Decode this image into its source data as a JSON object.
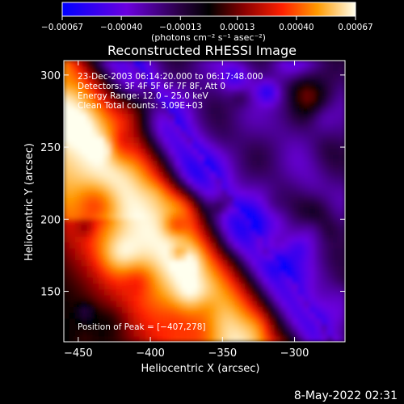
{
  "chart_data": {
    "type": "heatmap",
    "title": "Reconstructed RHESSI Image",
    "xlabel": "Heliocentric X (arcsec)",
    "ylabel": "Heliocentric Y (arcsec)",
    "xlim": [
      -460,
      -265
    ],
    "ylim": [
      115,
      310
    ],
    "x_ticks": [
      -450,
      -400,
      -350,
      -300
    ],
    "x_tick_labels": [
      "−450",
      "−400",
      "−350",
      "−300"
    ],
    "y_ticks": [
      150,
      200,
      250,
      300
    ],
    "y_tick_labels": [
      "150",
      "200",
      "250",
      "300"
    ],
    "colorbar": {
      "range": [
        -0.00067,
        0.00067
      ],
      "ticks": [
        -0.00067,
        -0.0004,
        -0.00013,
        0.00013,
        0.0004,
        0.00067
      ],
      "tick_labels": [
        "−0.00067",
        "−0.00040",
        "−0.00013",
        "0.00013",
        "0.00040",
        "0.00067"
      ],
      "units": "(photons cm⁻² s⁻¹ asec⁻²)",
      "colors": [
        "#0000ff",
        "#7f00ff",
        "#1a0033",
        "#000000",
        "#7a0000",
        "#ff2000",
        "#ff9900",
        "#ffff66",
        "#ffffff"
      ]
    },
    "annotations": [
      "23-Dec-2003 06:14:20.000 to 06:17:48.000",
      "Detectors: 3F 4F 5F 6F 7F 8F, Att 0",
      "Energy Range: 12.0 – 25.0 keV",
      "Clean    Total counts: 3.09E+03"
    ],
    "peak_label": "Position of Peak = [−407,278]",
    "peak": [
      -407,
      278
    ]
  },
  "footer": {
    "date_stamp": "8-May-2022 02:31"
  }
}
